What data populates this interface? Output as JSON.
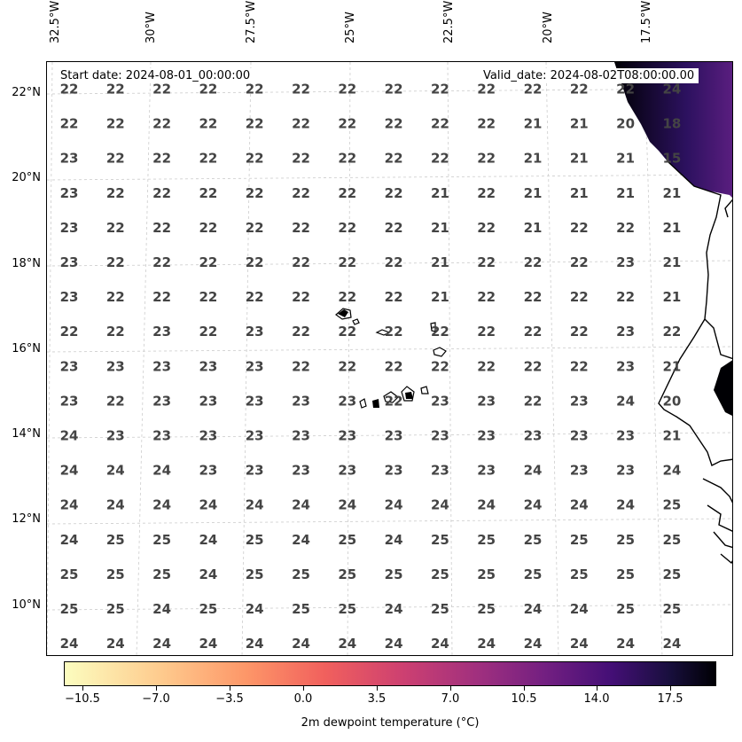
{
  "map": {
    "start_date": "Start date: 2024-08-01_00:00:00",
    "valid_date": "Valid_date: 2024-08-02T08:00:00.00",
    "lon_labels": [
      "32.5°W",
      "30°W",
      "27.5°W",
      "25°W",
      "22.5°W",
      "20°W",
      "17.5°W"
    ],
    "lat_labels": [
      "22°N",
      "20°N",
      "18°N",
      "16°N",
      "14°N",
      "12°N",
      "10°N"
    ],
    "grid_values": [
      [
        "22",
        "22",
        "22",
        "22",
        "22",
        "22",
        "22",
        "22",
        "22",
        "22",
        "22",
        "22",
        "22",
        "24"
      ],
      [
        "22",
        "22",
        "22",
        "22",
        "22",
        "22",
        "22",
        "22",
        "22",
        "22",
        "21",
        "21",
        "20",
        "18"
      ],
      [
        "23",
        "22",
        "22",
        "22",
        "22",
        "22",
        "22",
        "22",
        "22",
        "22",
        "21",
        "21",
        "21",
        "15"
      ],
      [
        "23",
        "22",
        "22",
        "22",
        "22",
        "22",
        "22",
        "22",
        "21",
        "22",
        "21",
        "21",
        "21",
        "21"
      ],
      [
        "23",
        "22",
        "22",
        "22",
        "22",
        "22",
        "22",
        "22",
        "21",
        "22",
        "21",
        "22",
        "22",
        "21"
      ],
      [
        "23",
        "22",
        "22",
        "22",
        "22",
        "22",
        "22",
        "22",
        "21",
        "22",
        "22",
        "22",
        "23",
        "21"
      ],
      [
        "23",
        "22",
        "22",
        "22",
        "22",
        "22",
        "22",
        "22",
        "21",
        "22",
        "22",
        "22",
        "22",
        "21"
      ],
      [
        "22",
        "22",
        "23",
        "22",
        "23",
        "22",
        "22",
        "22",
        "22",
        "22",
        "22",
        "22",
        "23",
        "22"
      ],
      [
        "23",
        "23",
        "23",
        "23",
        "23",
        "22",
        "22",
        "22",
        "22",
        "22",
        "22",
        "22",
        "23",
        "21"
      ],
      [
        "23",
        "22",
        "23",
        "23",
        "23",
        "23",
        "23",
        "22",
        "23",
        "23",
        "22",
        "23",
        "24",
        "20"
      ],
      [
        "24",
        "23",
        "23",
        "23",
        "23",
        "23",
        "23",
        "23",
        "23",
        "23",
        "23",
        "23",
        "23",
        "21"
      ],
      [
        "24",
        "24",
        "24",
        "23",
        "23",
        "23",
        "23",
        "23",
        "23",
        "23",
        "24",
        "23",
        "23",
        "24"
      ],
      [
        "24",
        "24",
        "24",
        "24",
        "24",
        "24",
        "24",
        "24",
        "24",
        "24",
        "24",
        "24",
        "24",
        "25"
      ],
      [
        "24",
        "25",
        "25",
        "24",
        "25",
        "24",
        "25",
        "24",
        "25",
        "25",
        "25",
        "25",
        "25",
        "25"
      ],
      [
        "25",
        "25",
        "25",
        "24",
        "25",
        "25",
        "25",
        "25",
        "25",
        "25",
        "25",
        "25",
        "25",
        "25"
      ],
      [
        "25",
        "25",
        "24",
        "25",
        "24",
        "25",
        "25",
        "24",
        "25",
        "25",
        "24",
        "24",
        "25",
        "25"
      ],
      [
        "24",
        "24",
        "24",
        "24",
        "24",
        "24",
        "24",
        "24",
        "24",
        "24",
        "24",
        "24",
        "24",
        "24"
      ]
    ]
  },
  "colorbar": {
    "ticks": [
      "−10.5",
      "−7.0",
      "−3.5",
      "0.0",
      "3.5",
      "7.0",
      "10.5",
      "14.0",
      "17.5"
    ],
    "title": "2m dewpoint temperature (°C)",
    "colors": [
      "#fcfdbf",
      "#fd9668",
      "#cd4071",
      "#721f81",
      "#180f3d",
      "#000004"
    ]
  }
}
